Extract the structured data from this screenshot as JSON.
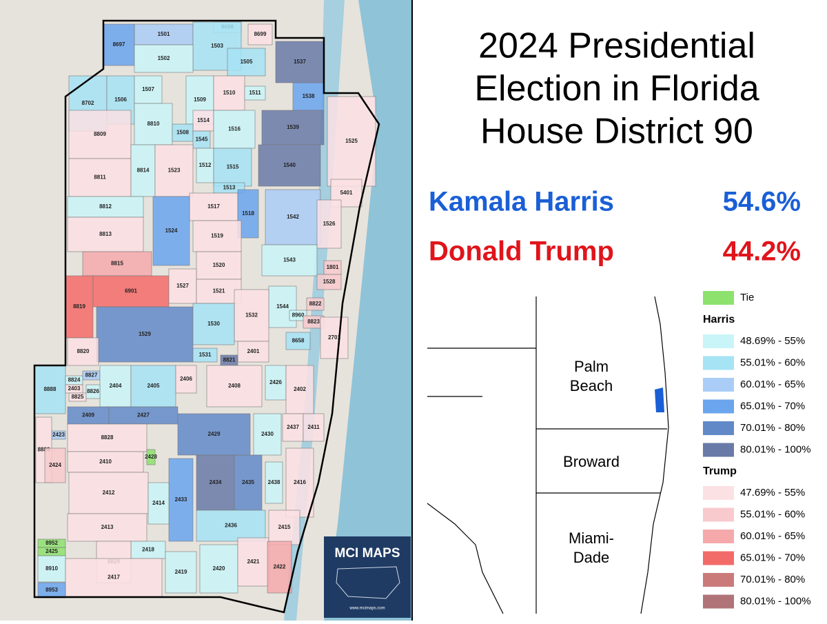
{
  "title": [
    "2024 Presidential",
    "Election in Florida",
    "House District 90"
  ],
  "results": [
    {
      "name": "Kamala Harris",
      "share": "54.6%",
      "color": "#1a5fd6"
    },
    {
      "name": "Donald Trump",
      "share": "44.2%",
      "color": "#e0141b"
    }
  ],
  "counties": [
    [
      "Palm",
      "Beach"
    ],
    [
      "Broward"
    ],
    [
      "Miami-",
      "Dade"
    ]
  ],
  "legend": {
    "tie": {
      "label": "Tie",
      "color": "#8de26e"
    },
    "groups": [
      {
        "name": "Harris",
        "items": [
          {
            "label": "48.69% - 55%",
            "color": "#c9f5f8"
          },
          {
            "label": "55.01% - 60%",
            "color": "#a6e3f5"
          },
          {
            "label": "60.01% - 65%",
            "color": "#a9cdf6"
          },
          {
            "label": "65.01% - 70%",
            "color": "#6aa5ee"
          },
          {
            "label": "70.01% - 80%",
            "color": "#6189c8"
          },
          {
            "label": "80.01% - 100%",
            "color": "#6a7aa8"
          }
        ]
      },
      {
        "name": "Trump",
        "items": [
          {
            "label": "47.69% - 55%",
            "color": "#fbe1e4"
          },
          {
            "label": "55.01% - 60%",
            "color": "#f8cacd"
          },
          {
            "label": "60.01% - 65%",
            "color": "#f5a9ab"
          },
          {
            "label": "65.01% - 70%",
            "color": "#f36b68"
          },
          {
            "label": "70.01% - 80%",
            "color": "#cb7a7a"
          },
          {
            "label": "80.01% - 100%",
            "color": "#b07478"
          }
        ]
      }
    ]
  },
  "logo": {
    "title": "MCI MAPS",
    "url": "www.mcimaps.com"
  },
  "precincts": [
    {
      "label": "1501",
      "color": "#a9cdf6"
    },
    {
      "label": "8698",
      "color": "#c9f5f8"
    },
    {
      "label": "8699",
      "color": "#fbe1e4"
    },
    {
      "label": "8697",
      "color": "#6aa5ee"
    },
    {
      "label": "1503",
      "color": "#a6e3f5"
    },
    {
      "label": "1502",
      "color": "#c9f5f8"
    },
    {
      "label": "1505",
      "color": "#a6e3f5"
    },
    {
      "label": "1537",
      "color": "#6a7aa8"
    },
    {
      "label": "8702",
      "color": "#a6e3f5"
    },
    {
      "label": "1506",
      "color": "#a6e3f5"
    },
    {
      "label": "1507",
      "color": "#c9f5f8"
    },
    {
      "label": "1509",
      "color": "#c9f5f8"
    },
    {
      "label": "1510",
      "color": "#fbe1e4"
    },
    {
      "label": "1511",
      "color": "#c9f5f8"
    },
    {
      "label": "1538",
      "color": "#6aa5ee"
    },
    {
      "label": "8810",
      "color": "#c9f5f8"
    },
    {
      "label": "8809",
      "color": "#fbe1e4"
    },
    {
      "label": "1514",
      "color": "#fbe1e4"
    },
    {
      "label": "1516",
      "color": "#c9f5f8"
    },
    {
      "label": "1539",
      "color": "#6a7aa8"
    },
    {
      "label": "1525",
      "color": "#fbe1e4"
    },
    {
      "label": "1508",
      "color": "#a6e3f5"
    },
    {
      "label": "1545",
      "color": "#a6e3f5"
    },
    {
      "label": "8811",
      "color": "#fbe1e4"
    },
    {
      "label": "8814",
      "color": "#c9f5f8"
    },
    {
      "label": "1523",
      "color": "#fbe1e4"
    },
    {
      "label": "1512",
      "color": "#c9f5f8"
    },
    {
      "label": "1515",
      "color": "#a6e3f5"
    },
    {
      "label": "1540",
      "color": "#6a7aa8"
    },
    {
      "label": "1513",
      "color": "#a6e3f5"
    },
    {
      "label": "5401",
      "color": "#fbe1e4"
    },
    {
      "label": "8812",
      "color": "#c9f5f8"
    },
    {
      "label": "1517",
      "color": "#fbe1e4"
    },
    {
      "label": "1524",
      "color": "#6aa5ee"
    },
    {
      "label": "1542",
      "color": "#a9cdf6"
    },
    {
      "label": "1518",
      "color": "#6aa5ee"
    },
    {
      "label": "1526",
      "color": "#fbe1e4"
    },
    {
      "label": "8813",
      "color": "#fbe1e4"
    },
    {
      "label": "1519",
      "color": "#fbe1e4"
    },
    {
      "label": "8815",
      "color": "#f5a9ab"
    },
    {
      "label": "1520",
      "color": "#fbe1e4"
    },
    {
      "label": "1543",
      "color": "#c9f5f8"
    },
    {
      "label": "1801",
      "color": "#f8cacd"
    },
    {
      "label": "1528",
      "color": "#f8cacd"
    },
    {
      "label": "8819",
      "color": "#f36b68"
    },
    {
      "label": "6901",
      "color": "#f36b68"
    },
    {
      "label": "1527",
      "color": "#fbe1e4"
    },
    {
      "label": "1521",
      "color": "#fbe1e4"
    },
    {
      "label": "1544",
      "color": "#c9f5f8"
    },
    {
      "label": "8822",
      "color": "#f8cacd"
    },
    {
      "label": "8960",
      "color": "#c9f5f8"
    },
    {
      "label": "8823",
      "color": "#f8cacd"
    },
    {
      "label": "1532",
      "color": "#fbe1e4"
    },
    {
      "label": "1529",
      "color": "#6189c8"
    },
    {
      "label": "1530",
      "color": "#a6e3f5"
    },
    {
      "label": "8658",
      "color": "#a6e3f5"
    },
    {
      "label": "2701",
      "color": "#fbe1e4"
    },
    {
      "label": "8820",
      "color": "#fbe1e4"
    },
    {
      "label": "2401",
      "color": "#fbe1e4"
    },
    {
      "label": "1531",
      "color": "#a6e3f5"
    },
    {
      "label": "8821",
      "color": "#6a7aa8"
    },
    {
      "label": "8888",
      "color": "#a6e3f5"
    },
    {
      "label": "8824",
      "color": "#c9f5f8"
    },
    {
      "label": "8827",
      "color": "#a9cdf6"
    },
    {
      "label": "2404",
      "color": "#c9f5f8"
    },
    {
      "label": "2405",
      "color": "#a6e3f5"
    },
    {
      "label": "2406",
      "color": "#fbe1e4"
    },
    {
      "label": "2408",
      "color": "#fbe1e4"
    },
    {
      "label": "2426",
      "color": "#c9f5f8"
    },
    {
      "label": "2402",
      "color": "#fbe1e4"
    },
    {
      "label": "2403",
      "color": "#fbe1e4"
    },
    {
      "label": "8825",
      "color": "#fbe1e4"
    },
    {
      "label": "8826",
      "color": "#c9f5f8"
    },
    {
      "label": "2409",
      "color": "#6189c8"
    },
    {
      "label": "2427",
      "color": "#6189c8"
    },
    {
      "label": "2429",
      "color": "#6189c8"
    },
    {
      "label": "2430",
      "color": "#c9f5f8"
    },
    {
      "label": "2437",
      "color": "#fbe1e4"
    },
    {
      "label": "2411",
      "color": "#fbe1e4"
    },
    {
      "label": "2423",
      "color": "#a9cdf6"
    },
    {
      "label": "8889",
      "color": "#fbe1e4"
    },
    {
      "label": "8828",
      "color": "#fbe1e4"
    },
    {
      "label": "2410",
      "color": "#fbe1e4"
    },
    {
      "label": "2428",
      "color": "#8de26e"
    },
    {
      "label": "2424",
      "color": "#f8cacd"
    },
    {
      "label": "2434",
      "color": "#6a7aa8"
    },
    {
      "label": "2435",
      "color": "#6189c8"
    },
    {
      "label": "2438",
      "color": "#c9f5f8"
    },
    {
      "label": "2416",
      "color": "#fbe1e4"
    },
    {
      "label": "2412",
      "color": "#fbe1e4"
    },
    {
      "label": "2433",
      "color": "#6aa5ee"
    },
    {
      "label": "2414",
      "color": "#c9f5f8"
    },
    {
      "label": "2436",
      "color": "#a6e3f5"
    },
    {
      "label": "2415",
      "color": "#fbe1e4"
    },
    {
      "label": "2413",
      "color": "#fbe1e4"
    },
    {
      "label": "8952",
      "color": "#8de26e"
    },
    {
      "label": "2425",
      "color": "#8de26e"
    },
    {
      "label": "2418",
      "color": "#c9f5f8"
    },
    {
      "label": "8829",
      "color": "#fbe1e4"
    },
    {
      "label": "2419",
      "color": "#c9f5f8"
    },
    {
      "label": "2420",
      "color": "#c9f5f8"
    },
    {
      "label": "2421",
      "color": "#fbe1e4"
    },
    {
      "label": "2422",
      "color": "#f5a9ab"
    },
    {
      "label": "8910",
      "color": "#c9f5f8"
    },
    {
      "label": "2417",
      "color": "#fbe1e4"
    },
    {
      "label": "8953",
      "color": "#6aa5ee"
    }
  ]
}
